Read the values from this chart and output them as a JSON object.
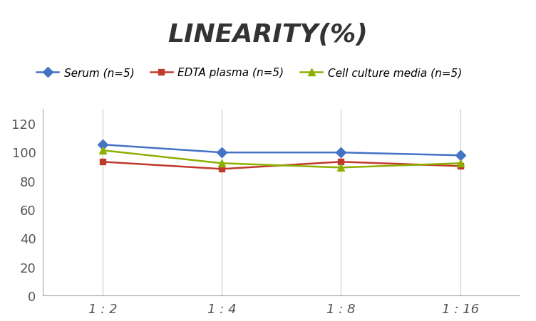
{
  "title": "LINEARITY(%)",
  "x_labels": [
    "1 : 2",
    "1 : 4",
    "1 : 8",
    "1 : 16"
  ],
  "x_positions": [
    0,
    1,
    2,
    3
  ],
  "series": [
    {
      "label": "Serum (n=5)",
      "values": [
        105,
        99.5,
        99.5,
        97.5
      ],
      "color": "#4472C4",
      "marker": "D",
      "markersize": 7,
      "linewidth": 1.8
    },
    {
      "label": "EDTA plasma (n=5)",
      "values": [
        93,
        88,
        93,
        90
      ],
      "color": "#C0392B",
      "marker": "s",
      "markersize": 6,
      "linewidth": 1.8
    },
    {
      "label": "Cell culture media (n=5)",
      "values": [
        101,
        92,
        89,
        92
      ],
      "color": "#8DB000",
      "marker": "^",
      "markersize": 7,
      "linewidth": 1.8
    }
  ],
  "ylim": [
    0,
    130
  ],
  "yticks": [
    0,
    20,
    40,
    60,
    80,
    100,
    120
  ],
  "background_color": "#FFFFFF",
  "grid_color": "#CCCCCC",
  "title_fontsize": 26,
  "legend_fontsize": 11,
  "tick_fontsize": 13
}
